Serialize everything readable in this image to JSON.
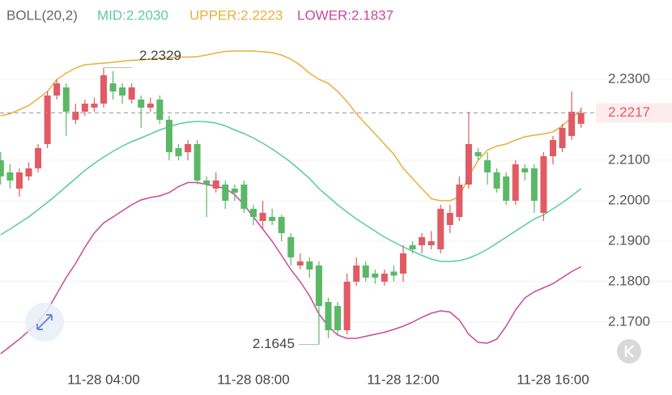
{
  "chart_data": {
    "type": "candlestick",
    "indicator": "BOLL(20,2)",
    "mid_label": "MID:2.2030",
    "upper_label": "UPPER:2.2223",
    "lower_label": "LOWER:2.1837",
    "high_label": "2.2329",
    "low_label": "2.1645",
    "last_price_label": "2.2217",
    "up_color": "#e15b64",
    "down_color": "#5bb866",
    "ylim": [
      2.1586,
      2.2496
    ],
    "yticks": [
      {
        "value": 2.23,
        "label": "2.2300"
      },
      {
        "value": 2.21,
        "label": "2.2100"
      },
      {
        "value": 2.2,
        "label": "2.2000"
      },
      {
        "value": 2.19,
        "label": "2.1900"
      },
      {
        "value": 2.18,
        "label": "2.1800"
      },
      {
        "value": 2.17,
        "label": "2.1700"
      }
    ],
    "grid": true,
    "categories": [
      null,
      null,
      null,
      null,
      null,
      null,
      null,
      null,
      null,
      null,
      null,
      "11-28 04:00",
      null,
      null,
      null,
      null,
      null,
      null,
      null,
      null,
      null,
      null,
      null,
      null,
      null,
      null,
      null,
      "11-28 08:00",
      null,
      null,
      null,
      null,
      null,
      null,
      null,
      null,
      null,
      null,
      null,
      null,
      null,
      null,
      null,
      "11-28 12:00",
      null,
      null,
      null,
      null,
      null,
      null,
      null,
      null,
      null,
      null,
      null,
      null,
      null,
      null,
      null,
      "11-28 16:00",
      null,
      null,
      null
    ],
    "open": [
      2.21,
      2.207,
      2.203,
      2.206,
      2.208,
      2.214,
      2.226,
      2.228,
      2.22,
      2.222,
      2.223,
      2.224,
      2.229,
      2.228,
      2.225,
      2.225,
      2.223,
      2.225,
      2.22,
      2.213,
      2.212,
      2.214,
      2.205,
      2.203,
      2.204,
      2.203,
      2.204,
      2.198,
      2.195,
      2.196,
      2.196,
      2.191,
      2.184,
      2.185,
      2.184,
      2.175,
      2.174,
      2.168,
      2.18,
      2.184,
      2.182,
      2.18,
      2.1825,
      2.182,
      2.189,
      2.189,
      2.189,
      2.188,
      2.194,
      2.196,
      2.204,
      2.212,
      2.21,
      2.207,
      2.206,
      2.2,
      2.208,
      2.208,
      2.197,
      2.211,
      2.213,
      2.216,
      2.219
    ],
    "close": [
      2.206,
      2.205,
      2.207,
      2.208,
      2.213,
      2.226,
      2.229,
      2.222,
      2.222,
      2.224,
      2.224,
      2.231,
      2.227,
      2.226,
      2.228,
      2.223,
      2.224,
      2.22,
      2.212,
      2.211,
      2.214,
      2.205,
      2.204,
      2.205,
      2.2,
      2.202,
      2.198,
      2.196,
      2.197,
      2.195,
      2.192,
      2.186,
      2.185,
      2.183,
      2.174,
      2.168,
      2.168,
      2.18,
      2.184,
      2.181,
      2.181,
      2.182,
      2.1815,
      2.187,
      2.188,
      2.191,
      2.19,
      2.198,
      2.197,
      2.204,
      2.214,
      2.211,
      2.207,
      2.203,
      2.2,
      2.209,
      2.207,
      2.2,
      2.211,
      2.215,
      2.218,
      2.222,
      2.2217
    ],
    "high": [
      2.212,
      2.209,
      2.208,
      2.2095,
      2.214,
      2.227,
      2.23,
      2.229,
      2.224,
      2.225,
      2.2255,
      2.2329,
      2.232,
      2.229,
      2.229,
      2.226,
      2.2255,
      2.226,
      2.221,
      2.214,
      2.215,
      2.215,
      2.206,
      2.207,
      2.205,
      2.204,
      2.205,
      2.199,
      2.2,
      2.198,
      2.1965,
      2.192,
      2.187,
      2.186,
      2.185,
      2.176,
      2.175,
      2.182,
      2.186,
      2.185,
      2.183,
      2.183,
      2.184,
      2.189,
      2.19,
      2.192,
      2.1925,
      2.199,
      2.199,
      2.206,
      2.222,
      2.213,
      2.212,
      2.208,
      2.207,
      2.21,
      2.209,
      2.209,
      2.212,
      2.216,
      2.219,
      2.227,
      2.223
    ],
    "low": [
      2.204,
      2.203,
      2.201,
      2.205,
      2.207,
      2.213,
      2.225,
      2.216,
      2.219,
      2.221,
      2.222,
      2.223,
      2.225,
      2.224,
      2.224,
      2.218,
      2.222,
      2.219,
      2.21,
      2.21,
      2.21,
      2.204,
      2.196,
      2.202,
      2.198,
      2.2,
      2.197,
      2.194,
      2.193,
      2.194,
      2.19,
      2.184,
      2.183,
      2.181,
      2.1645,
      2.166,
      2.167,
      2.167,
      2.179,
      2.18,
      2.1795,
      2.179,
      2.18,
      2.18,
      2.187,
      2.187,
      2.188,
      2.187,
      2.192,
      2.195,
      2.203,
      2.21,
      2.204,
      2.202,
      2.199,
      2.199,
      2.205,
      2.197,
      2.195,
      2.209,
      2.212,
      2.215,
      2.218
    ],
    "series": [
      {
        "name": "UPPER",
        "color": "#e8b03a",
        "values": [
          2.221,
          2.2215,
          2.2225,
          2.2235,
          2.2252,
          2.227,
          2.23,
          2.2315,
          2.2328,
          2.2336,
          2.2338,
          2.234,
          2.2342,
          2.2345,
          2.2347,
          2.2348,
          2.235,
          2.2352,
          2.2353,
          2.2355,
          2.2355,
          2.2356,
          2.236,
          2.2365,
          2.2369,
          2.237,
          2.237,
          2.237,
          2.2368,
          2.2366,
          2.236,
          2.235,
          2.2335,
          2.2315,
          2.23,
          2.229,
          2.227,
          2.2245,
          2.2215,
          2.219,
          2.2165,
          2.214,
          2.2115,
          2.208,
          2.2055,
          2.203,
          2.2005,
          2.2,
          2.2,
          2.201,
          2.206,
          2.21,
          2.2125,
          2.2135,
          2.214,
          2.215,
          2.2158,
          2.2162,
          2.2165,
          2.217,
          2.2185,
          2.2205,
          2.2223
        ]
      },
      {
        "name": "MID",
        "color": "#5cc9a7",
        "values": [
          2.1916,
          2.193,
          2.1945,
          2.196,
          2.1978,
          2.1996,
          2.2015,
          2.2035,
          2.2055,
          2.2075,
          2.2092,
          2.2108,
          2.2122,
          2.2135,
          2.2146,
          2.2155,
          2.2165,
          2.2175,
          2.2183,
          2.219,
          2.2194,
          2.2196,
          2.2195,
          2.2192,
          2.2185,
          2.2175,
          2.2166,
          2.2155,
          2.2142,
          2.2128,
          2.2112,
          2.2095,
          2.2075,
          2.2055,
          2.203,
          2.201,
          2.199,
          2.1972,
          2.1955,
          2.194,
          2.1925,
          2.191,
          2.1898,
          2.1886,
          2.1875,
          2.1865,
          2.1856,
          2.185,
          2.185,
          2.1852,
          2.1858,
          2.1868,
          2.188,
          2.1895,
          2.191,
          2.1925,
          2.194,
          2.1955,
          2.1965,
          2.198,
          2.1995,
          2.2012,
          2.203
        ]
      },
      {
        "name": "LOWER",
        "color": "#c94a9b",
        "values": [
          2.1622,
          2.164,
          2.1658,
          2.1678,
          2.17,
          2.173,
          2.177,
          2.181,
          2.1845,
          2.1885,
          2.192,
          2.1945,
          2.196,
          2.1975,
          2.199,
          2.2002,
          2.2008,
          2.2012,
          2.202,
          2.2035,
          2.2045,
          2.2045,
          2.204,
          2.2036,
          2.203,
          2.2015,
          2.199,
          2.196,
          2.193,
          2.19,
          2.1865,
          2.183,
          2.18,
          2.1765,
          2.172,
          2.169,
          2.1668,
          2.166,
          2.166,
          2.1665,
          2.167,
          2.1675,
          2.1682,
          2.169,
          2.17,
          2.1712,
          2.1722,
          2.1728,
          2.1725,
          2.1705,
          2.167,
          2.165,
          2.1648,
          2.1658,
          2.169,
          2.173,
          2.176,
          2.1775,
          2.1785,
          2.1795,
          2.181,
          2.1825,
          2.1837
        ]
      }
    ]
  }
}
